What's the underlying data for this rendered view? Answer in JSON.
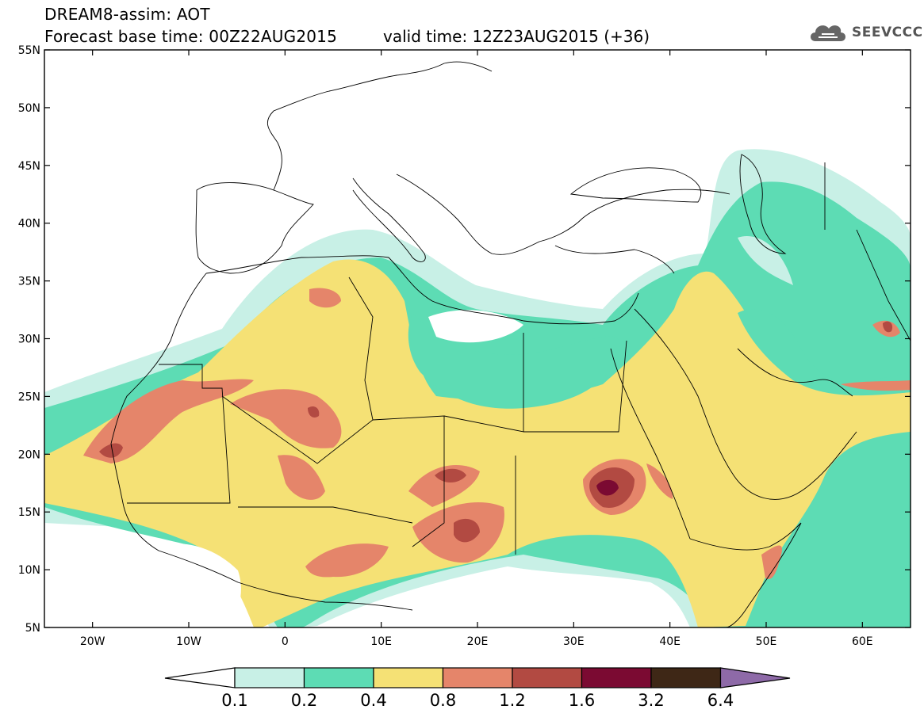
{
  "header": {
    "title_line1": "DREAM8-assim: AOT",
    "title_line2": "Forecast base time: 00Z22AUG2015",
    "valid_time": "valid time: 12Z23AUG2015 (+36)"
  },
  "logo": {
    "text": "SEEVCCC",
    "icon": "cloud-icon"
  },
  "map": {
    "lon_range": [
      -25,
      65
    ],
    "lat_range": [
      5,
      55
    ],
    "lon_ticks": [
      "20W",
      "10W",
      "0",
      "10E",
      "20E",
      "30E",
      "40E",
      "50E",
      "60E"
    ],
    "lat_ticks": [
      "5N",
      "10N",
      "15N",
      "20N",
      "25N",
      "30N",
      "35N",
      "40N",
      "45N",
      "50N",
      "55N"
    ]
  },
  "colorbar": {
    "labels": [
      "0.1",
      "0.2",
      "0.4",
      "0.8",
      "1.2",
      "1.6",
      "3.2",
      "6.4"
    ],
    "colors": [
      "#ffffff",
      "#c8f0e6",
      "#5ddcb4",
      "#f5e175",
      "#e5856a",
      "#b24a42",
      "#7b0a32",
      "#3e2716",
      "#8e6aa8"
    ]
  }
}
